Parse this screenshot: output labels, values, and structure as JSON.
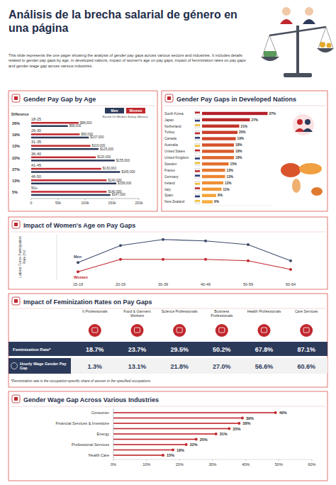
{
  "header": {
    "title": "Análisis de la brecha salarial de género en una página",
    "description": "This slide represents the one pager showing the analysis of gender pay gaps across various sectors and industries. It includes details related to gender pay gaps by age, in developed nations, impact of women's age on pay gaps, impact of feminization rates on pay gaps and gender wage gap across various industries."
  },
  "chart_data": [
    {
      "type": "bar",
      "title": "Gender Pay Gap by Age",
      "orientation": "horizontal",
      "categories": [
        "18-25",
        "26-30",
        "31-35",
        "36-40",
        "41-45",
        "46-50",
        "50+"
      ],
      "series": [
        {
          "name": "Women",
          "color": "#c0272d",
          "values": [
            88000,
            90000,
            110000,
            120000,
            130000,
            140000,
            140000
          ],
          "value_labels": [
            "$88,000",
            "$90,000",
            "$110,000",
            "$120,000",
            "$130,000",
            "$140,000",
            "$140,000"
          ]
        },
        {
          "name": "Men",
          "color": "#2c3a5a",
          "values": [
            68000,
            107000,
            125000,
            155000,
            165000,
            158000,
            147000
          ],
          "value_labels": [
            "$68,000",
            "$107,000",
            "$125,000",
            "$155,000",
            "$165,000",
            "$158,000",
            "$147,000"
          ]
        }
      ],
      "xlim": [
        0,
        200000
      ],
      "xticks": [
        0,
        {
          "value": 50000,
          "label": "50k"
        },
        {
          "value": 100000,
          "label": "100k"
        },
        {
          "value": 150000,
          "label": "150k"
        },
        {
          "value": 200000,
          "label": "200k"
        }
      ],
      "legend": "top-right",
      "legend_note": "Based On Median Salary (Bonus)",
      "difference_title": "Difference",
      "differences": [
        "26%",
        "19%",
        "13%",
        "22%",
        "27%",
        "13%",
        "5%"
      ],
      "data_labels": true,
      "grid": false
    },
    {
      "type": "bar",
      "title": "Gender Pay Gaps in Developed Nations",
      "orientation": "horizontal",
      "categories": [
        "South Korea",
        "Japan",
        "Netherland",
        "Turkey",
        "Canada",
        "Australia",
        "United States",
        "United Kingdom",
        "Sweden",
        "France",
        "Germany",
        "Ireland",
        "Italy",
        "Spain",
        "New Zealand"
      ],
      "values": [
        37,
        27,
        21,
        20,
        19,
        18,
        18,
        18,
        15,
        13,
        13,
        12,
        11,
        8,
        6
      ],
      "value_labels": [
        "37%",
        "27%",
        "21%",
        "20%",
        "19%",
        "18%",
        "18%",
        "18%",
        "15%",
        "13%",
        "13%",
        "12%",
        "11%",
        "8%",
        "6%"
      ],
      "colors": [
        "#b3202a",
        "#bb2a2a",
        "#c3342a",
        "#c93e2a",
        "#cf482a",
        "#d5522b",
        "#da5c2c",
        "#df662d",
        "#e3712f",
        "#e77b31",
        "#eb8533",
        "#ee8f35",
        "#f09937",
        "#f2a33a",
        "#f4ad3d"
      ],
      "xlim": [
        0,
        40
      ],
      "tick_labels": false,
      "data_labels": true,
      "grid": false
    },
    {
      "type": "line",
      "title": "Impact of Women's Age on Pay Gaps",
      "y_label": "Labour Force Participation Rate (%)",
      "categories": [
        "15-19",
        "20-29",
        "30-39",
        "40-49",
        "50-59",
        "60-64"
      ],
      "series": [
        {
          "name": "Men",
          "color": "#3d4b6b",
          "marker": "circle",
          "values": [
            38,
            75,
            88,
            85,
            77,
            42
          ]
        },
        {
          "name": "Women",
          "color": "#c0272d",
          "marker": "circle",
          "values": [
            18,
            45,
            45,
            45,
            42,
            23
          ]
        }
      ],
      "ylim": [
        0,
        100
      ],
      "tick_labels": "x",
      "grid": false
    },
    {
      "type": "bar",
      "title": "Gender Wage Gap Across Various Industries",
      "orientation": "horizontal",
      "categories": [
        "Consumer",
        null,
        "Financial Services & Investtore",
        null,
        "Energy",
        null,
        "Professional Services",
        null,
        "Health Care"
      ],
      "values": [
        49,
        39,
        38,
        35,
        31,
        25,
        22,
        18,
        15
      ],
      "value_labels": [
        "49%",
        "39%",
        "38%",
        "35%",
        "31%",
        "25%",
        "22%",
        "18%",
        "15%"
      ],
      "color": "#c0272d",
      "xlim": [
        0,
        60
      ],
      "xticks": [
        {
          "value": 0,
          "label": "0%"
        },
        {
          "value": 10,
          "label": "10%"
        },
        {
          "value": 20,
          "label": "20%"
        },
        {
          "value": 30,
          "label": "30%"
        },
        {
          "value": 40,
          "label": "40%"
        },
        {
          "value": 50,
          "label": "50%"
        },
        {
          "value": 60,
          "label": "60%"
        }
      ],
      "data_labels": true,
      "grid": false
    }
  ],
  "feminization_table": {
    "title": "Impact of Feminization Rates on Pay Gaps",
    "columns": [
      "It Professionals",
      "Food & Garment Workers",
      "Science Professionals",
      "Business Professionals",
      "Health Professionals",
      "Care Services"
    ],
    "rows": [
      {
        "label": "Feminization Rate*",
        "cells": [
          "18.7%",
          "23.7%",
          "29.5%",
          "50.2%",
          "67.8%",
          "87.1%"
        ]
      },
      {
        "label": "Hourly Wage Gender Pay Gap",
        "cells": [
          "1.3%",
          "13.1%",
          "21.8%",
          "27.0%",
          "56.6%",
          "60.6%"
        ]
      }
    ],
    "note": "*Feminization rate is the occupation-specific share of women in the specified occupations"
  }
}
